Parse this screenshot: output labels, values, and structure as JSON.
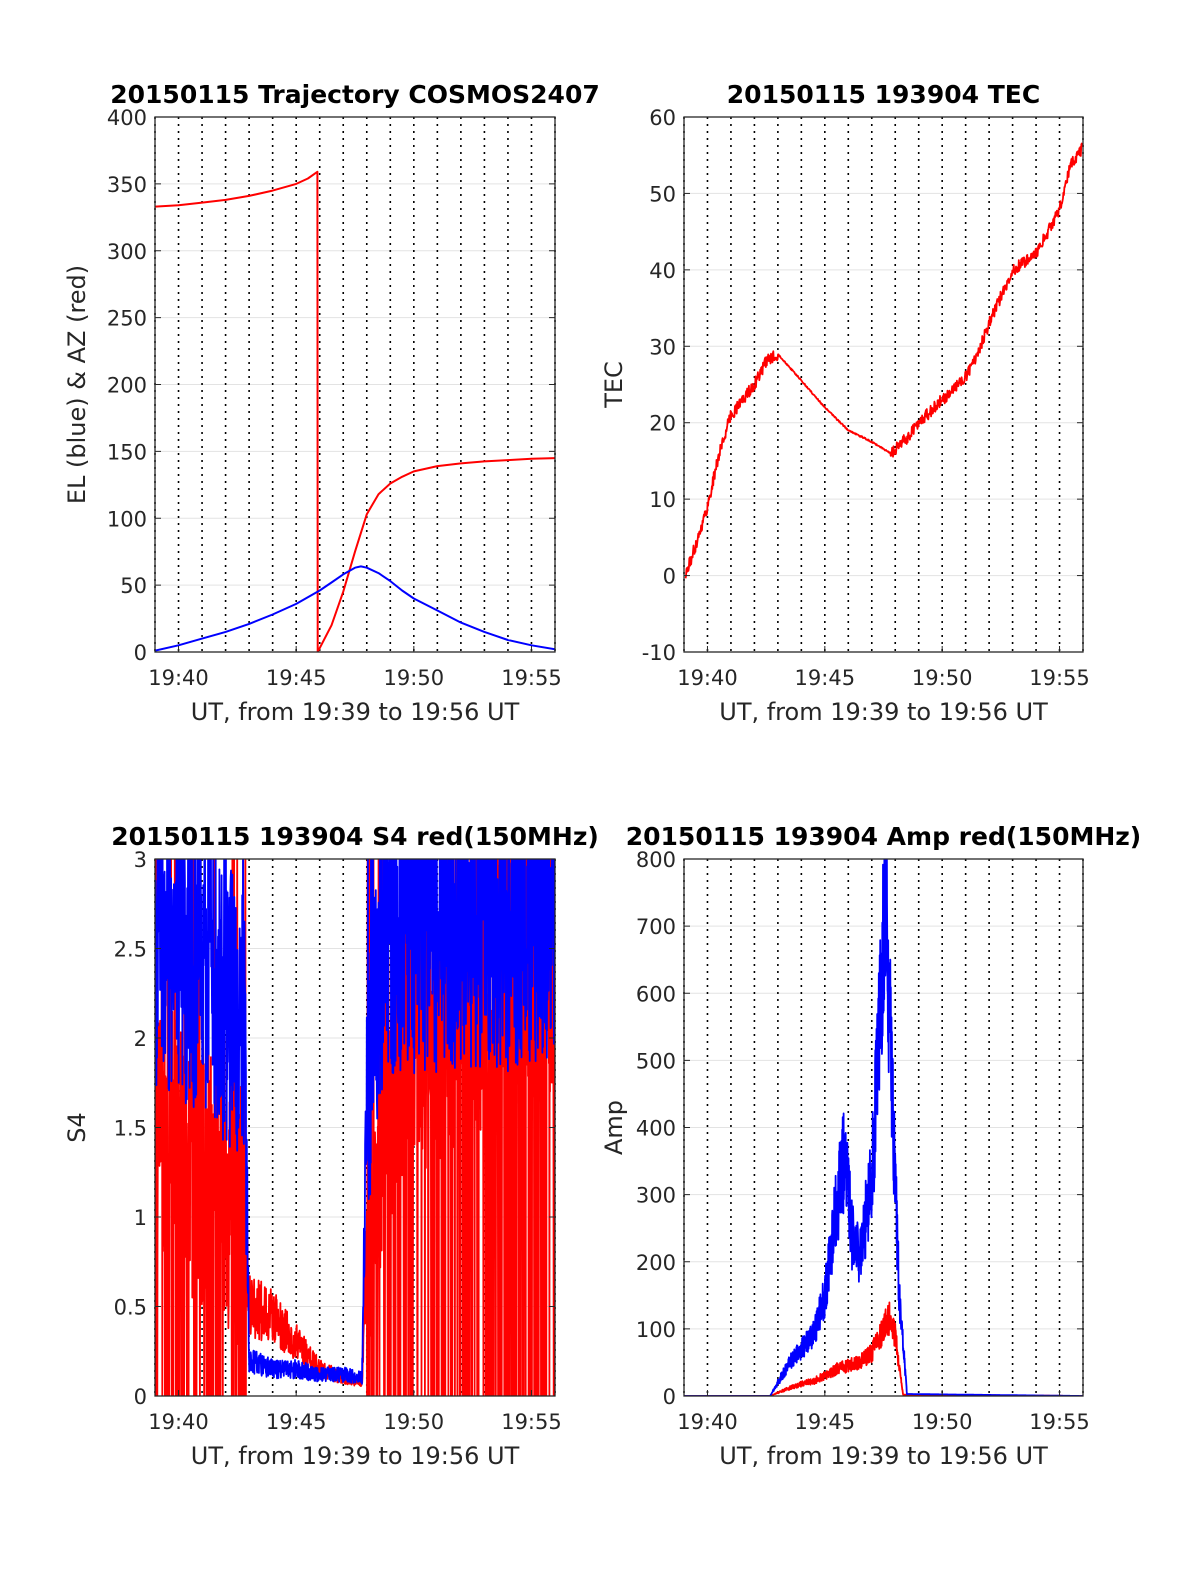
{
  "figure": {
    "background": "#ffffff",
    "line_colors": {
      "red": "#ff0000",
      "blue": "#0000ff"
    }
  },
  "chart_data": [
    {
      "type": "line",
      "title": "20150115 Trajectory COSMOS2407",
      "xlabel": "UT, from 19:39 to 19:56 UT",
      "ylabel": "EL (blue) & AZ (red)",
      "xlim": [
        "19:39",
        "19:56"
      ],
      "ylim": [
        0,
        400
      ],
      "xticks": [
        "19:40",
        "19:45",
        "19:50",
        "19:55"
      ],
      "yticks": [
        "0",
        "50",
        "100",
        "150",
        "200",
        "250",
        "300",
        "350",
        "400"
      ],
      "grid": true,
      "series": [
        {
          "color": "red",
          "x": [
            "19:39:00",
            "19:40:00",
            "19:41:00",
            "19:42:00",
            "19:43:00",
            "19:44:00",
            "19:45:00",
            "19:45:30",
            "19:45:54",
            "19:45:55",
            "19:46:30",
            "19:47:00",
            "19:47:30",
            "19:48:00",
            "19:48:30",
            "19:49:00",
            "19:49:30",
            "19:50:00",
            "19:51:00",
            "19:52:00",
            "19:53:00",
            "19:54:00",
            "19:55:00",
            "19:56:00"
          ],
          "values": [
            333,
            334,
            336,
            338,
            341,
            345,
            350,
            354,
            359,
            0,
            20,
            45,
            75,
            103,
            118,
            126,
            131,
            135,
            139,
            141,
            142.5,
            143.5,
            144.5,
            145
          ]
        },
        {
          "color": "blue",
          "x": [
            "19:39:00",
            "19:40:00",
            "19:41:00",
            "19:42:00",
            "19:43:00",
            "19:44:00",
            "19:45:00",
            "19:46:00",
            "19:46:30",
            "19:47:00",
            "19:47:30",
            "19:47:45",
            "19:48:00",
            "19:48:30",
            "19:49:00",
            "19:49:30",
            "19:50:00",
            "19:51:00",
            "19:52:00",
            "19:53:00",
            "19:54:00",
            "19:55:00",
            "19:56:00"
          ],
          "values": [
            1,
            5,
            10,
            15,
            21,
            28,
            36,
            46,
            52,
            58,
            63,
            64,
            63,
            59,
            53,
            46,
            40,
            31,
            22,
            15,
            9,
            5,
            2
          ]
        }
      ]
    },
    {
      "type": "line",
      "title": "20150115 193904 TEC",
      "xlabel": "UT, from 19:39 to 19:56 UT",
      "ylabel": "TEC",
      "xlim": [
        "19:39",
        "19:56"
      ],
      "ylim": [
        -10,
        60
      ],
      "xticks": [
        "19:40",
        "19:45",
        "19:50",
        "19:55"
      ],
      "yticks": [
        "-10",
        "0",
        "10",
        "20",
        "30",
        "40",
        "50",
        "60"
      ],
      "grid": true,
      "series": [
        {
          "color": "red",
          "x": [
            "19:39:04",
            "19:39:30",
            "19:40:00",
            "19:40:30",
            "19:41:00",
            "19:41:30",
            "19:42:00",
            "19:42:30",
            "19:43:00",
            "19:44:00",
            "19:45:00",
            "19:46:00",
            "19:47:00",
            "19:47:48",
            "19:48:30",
            "19:49:00",
            "19:50:00",
            "19:51:00",
            "19:51:30",
            "19:52:00",
            "19:53:00",
            "19:54:00",
            "19:55:00",
            "19:55:30",
            "19:56:00"
          ],
          "values": [
            0,
            4,
            9,
            16,
            21,
            23,
            25,
            28,
            29,
            25.5,
            22,
            19,
            17.5,
            16,
            18,
            20,
            23,
            26,
            29,
            33,
            40,
            42,
            48,
            54,
            56
          ]
        }
      ]
    },
    {
      "type": "line",
      "title": "20150115 193904 S4 red(150MHz)",
      "xlabel": "UT, from 19:39 to 19:56 UT",
      "ylabel": "S4",
      "xlim": [
        "19:39",
        "19:56"
      ],
      "ylim": [
        0,
        3
      ],
      "xticks": [
        "19:40",
        "19:45",
        "19:50",
        "19:55"
      ],
      "yticks": [
        "0",
        "0.5",
        "1",
        "1.5",
        "2",
        "2.5",
        "3"
      ],
      "grid": true,
      "series": [
        {
          "color": "red",
          "x": [
            "19:39:00",
            "19:40:00",
            "19:41:00",
            "19:42:00",
            "19:42:50",
            "19:43:00",
            "19:44:00",
            "19:45:00",
            "19:46:00",
            "19:47:00",
            "19:47:48",
            "19:48:00",
            "19:48:30",
            "19:49:00",
            "19:50:00",
            "19:52:00",
            "19:54:00",
            "19:56:00"
          ],
          "values": [
            1.6,
            1.4,
            1.3,
            1.2,
            1.0,
            0.5,
            0.45,
            0.3,
            0.15,
            0.1,
            0.08,
            0.9,
            1.4,
            1.8,
            2.0,
            2.2,
            2.3,
            2.4
          ]
        },
        {
          "color": "blue",
          "x": [
            "19:39:00",
            "19:40:00",
            "19:41:00",
            "19:42:00",
            "19:42:50",
            "19:43:00",
            "19:44:00",
            "19:45:00",
            "19:46:00",
            "19:47:00",
            "19:47:48",
            "19:48:00",
            "19:48:30",
            "19:49:00",
            "19:50:00",
            "19:52:00",
            "19:54:00",
            "19:56:00"
          ],
          "values": [
            2.5,
            2.4,
            2.4,
            2.2,
            2.0,
            0.2,
            0.15,
            0.15,
            0.12,
            0.12,
            0.1,
            1.6,
            2.4,
            2.6,
            2.6,
            2.6,
            2.6,
            2.7
          ]
        }
      ]
    },
    {
      "type": "line",
      "title": "20150115 193904 Amp red(150MHz)",
      "xlabel": "UT, from 19:39 to 19:56 UT",
      "ylabel": "Amp",
      "xlim": [
        "19:39",
        "19:56"
      ],
      "ylim": [
        0,
        800
      ],
      "xticks": [
        "19:40",
        "19:45",
        "19:50",
        "19:55"
      ],
      "yticks": [
        "0",
        "100",
        "200",
        "300",
        "400",
        "500",
        "600",
        "700",
        "800"
      ],
      "grid": true,
      "series": [
        {
          "color": "red",
          "x": [
            "19:39:00",
            "19:42:40",
            "19:43:00",
            "19:43:30",
            "19:44:00",
            "19:44:30",
            "19:45:00",
            "19:45:30",
            "19:46:00",
            "19:46:30",
            "19:47:00",
            "19:47:30",
            "19:47:48",
            "19:48:00",
            "19:48:20",
            "19:56:00"
          ],
          "values": [
            0,
            0,
            5,
            12,
            18,
            22,
            30,
            40,
            45,
            50,
            65,
            100,
            120,
            90,
            2,
            0
          ]
        },
        {
          "color": "blue",
          "x": [
            "19:39:00",
            "19:42:40",
            "19:43:00",
            "19:43:30",
            "19:44:00",
            "19:44:30",
            "19:45:00",
            "19:45:30",
            "19:45:50",
            "19:46:10",
            "19:46:30",
            "19:47:00",
            "19:47:20",
            "19:47:35",
            "19:47:50",
            "19:48:10",
            "19:48:30",
            "19:56:00"
          ],
          "values": [
            0,
            0,
            20,
            50,
            70,
            90,
            150,
            280,
            360,
            240,
            210,
            320,
            550,
            760,
            500,
            150,
            3,
            0
          ]
        }
      ]
    }
  ]
}
